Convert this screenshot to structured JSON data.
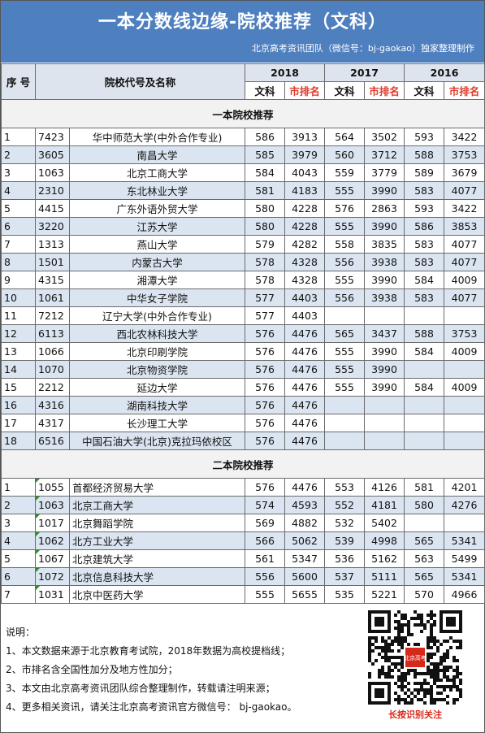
{
  "header": {
    "title": "一本分数线边缘-院校推荐（文科）",
    "credit": "北京高考资讯团队（微信号：bj-gaokao）独家整理制作"
  },
  "table": {
    "col_index": "序 号",
    "col_school": "院校代号及名称",
    "years": [
      "2018",
      "2017",
      "2016"
    ],
    "subject": "文科",
    "rank": "市排名"
  },
  "section1": {
    "title": "一本院校推荐",
    "rows": [
      {
        "n": "1",
        "code": "7423",
        "name": "华中师范大学(中外合作专业)",
        "s18": "586",
        "r18": "3913",
        "s17": "564",
        "r17": "3502",
        "s16": "593",
        "r16": "3422"
      },
      {
        "n": "2",
        "code": "3605",
        "name": "南昌大学",
        "s18": "585",
        "r18": "3979",
        "s17": "560",
        "r17": "3712",
        "s16": "588",
        "r16": "3753"
      },
      {
        "n": "3",
        "code": "1063",
        "name": "北京工商大学",
        "s18": "584",
        "r18": "4043",
        "s17": "559",
        "r17": "3779",
        "s16": "589",
        "r16": "3679"
      },
      {
        "n": "4",
        "code": "2310",
        "name": "东北林业大学",
        "s18": "581",
        "r18": "4183",
        "s17": "555",
        "r17": "3990",
        "s16": "583",
        "r16": "4077"
      },
      {
        "n": "5",
        "code": "4415",
        "name": "广东外语外贸大学",
        "s18": "580",
        "r18": "4228",
        "s17": "576",
        "r17": "2863",
        "s16": "593",
        "r16": "3422"
      },
      {
        "n": "6",
        "code": "3220",
        "name": "江苏大学",
        "s18": "580",
        "r18": "4228",
        "s17": "555",
        "r17": "3990",
        "s16": "586",
        "r16": "3853"
      },
      {
        "n": "7",
        "code": "1313",
        "name": "燕山大学",
        "s18": "579",
        "r18": "4282",
        "s17": "558",
        "r17": "3835",
        "s16": "583",
        "r16": "4077"
      },
      {
        "n": "8",
        "code": "1501",
        "name": "内蒙古大学",
        "s18": "578",
        "r18": "4328",
        "s17": "556",
        "r17": "3938",
        "s16": "583",
        "r16": "4077"
      },
      {
        "n": "9",
        "code": "4315",
        "name": "湘潭大学",
        "s18": "578",
        "r18": "4328",
        "s17": "555",
        "r17": "3990",
        "s16": "584",
        "r16": "4009"
      },
      {
        "n": "10",
        "code": "1061",
        "name": "中华女子学院",
        "s18": "577",
        "r18": "4403",
        "s17": "556",
        "r17": "3938",
        "s16": "583",
        "r16": "4077"
      },
      {
        "n": "11",
        "code": "7212",
        "name": "辽宁大学(中外合作专业)",
        "s18": "577",
        "r18": "4403",
        "s17": "",
        "r17": "",
        "s16": "",
        "r16": ""
      },
      {
        "n": "12",
        "code": "6113",
        "name": "西北农林科技大学",
        "s18": "576",
        "r18": "4476",
        "s17": "565",
        "r17": "3437",
        "s16": "588",
        "r16": "3753"
      },
      {
        "n": "13",
        "code": "1066",
        "name": "北京印刷学院",
        "s18": "576",
        "r18": "4476",
        "s17": "555",
        "r17": "3990",
        "s16": "584",
        "r16": "4009"
      },
      {
        "n": "14",
        "code": "1070",
        "name": "北京物资学院",
        "s18": "576",
        "r18": "4476",
        "s17": "555",
        "r17": "3990",
        "s16": "",
        "r16": ""
      },
      {
        "n": "15",
        "code": "2212",
        "name": "延边大学",
        "s18": "576",
        "r18": "4476",
        "s17": "555",
        "r17": "3990",
        "s16": "584",
        "r16": "4009"
      },
      {
        "n": "16",
        "code": "4316",
        "name": "湖南科技大学",
        "s18": "576",
        "r18": "4476",
        "s17": "",
        "r17": "",
        "s16": "",
        "r16": ""
      },
      {
        "n": "17",
        "code": "4317",
        "name": "长沙理工大学",
        "s18": "576",
        "r18": "4476",
        "s17": "",
        "r17": "",
        "s16": "",
        "r16": ""
      },
      {
        "n": "18",
        "code": "6516",
        "name": "中国石油大学(北京)克拉玛依校区",
        "s18": "576",
        "r18": "4476",
        "s17": "",
        "r17": "",
        "s16": "",
        "r16": ""
      }
    ]
  },
  "section2": {
    "title": "二本院校推荐",
    "rows": [
      {
        "n": "1",
        "code": "1055",
        "name": "首都经济贸易大学",
        "s18": "576",
        "r18": "4476",
        "s17": "553",
        "r17": "4126",
        "s16": "581",
        "r16": "4201"
      },
      {
        "n": "2",
        "code": "1063",
        "name": "北京工商大学",
        "s18": "574",
        "r18": "4593",
        "s17": "552",
        "r17": "4181",
        "s16": "580",
        "r16": "4276"
      },
      {
        "n": "3",
        "code": "1017",
        "name": "北京舞蹈学院",
        "s18": "569",
        "r18": "4882",
        "s17": "532",
        "r17": "5402",
        "s16": "",
        "r16": ""
      },
      {
        "n": "4",
        "code": "1062",
        "name": "北方工业大学",
        "s18": "566",
        "r18": "5062",
        "s17": "539",
        "r17": "4998",
        "s16": "565",
        "r16": "5341"
      },
      {
        "n": "5",
        "code": "1067",
        "name": "北京建筑大学",
        "s18": "561",
        "r18": "5347",
        "s17": "536",
        "r17": "5162",
        "s16": "563",
        "r16": "5499"
      },
      {
        "n": "6",
        "code": "1072",
        "name": "北京信息科技大学",
        "s18": "556",
        "r18": "5600",
        "s17": "537",
        "r17": "5111",
        "s16": "565",
        "r16": "5341"
      },
      {
        "n": "7",
        "code": "1031",
        "name": "北京中医药大学",
        "s18": "555",
        "r18": "5655",
        "s17": "535",
        "r17": "5221",
        "s16": "570",
        "r16": "4966"
      }
    ]
  },
  "notes": {
    "heading": "说明：",
    "lines": [
      "1、本文数据来源于北京教育考试院，2018年数据为高校提档线；",
      "2、市排名含全国性加分及地方性加分；",
      "3、本文由北京高考资讯团队综合整理制作，转载请注明来源；",
      "4、更多相关资讯，请关注北京高考资讯官方微信号： bj-gaokao。"
    ]
  },
  "qr": {
    "caption": "长按识别关注",
    "badge": "北京高考"
  }
}
